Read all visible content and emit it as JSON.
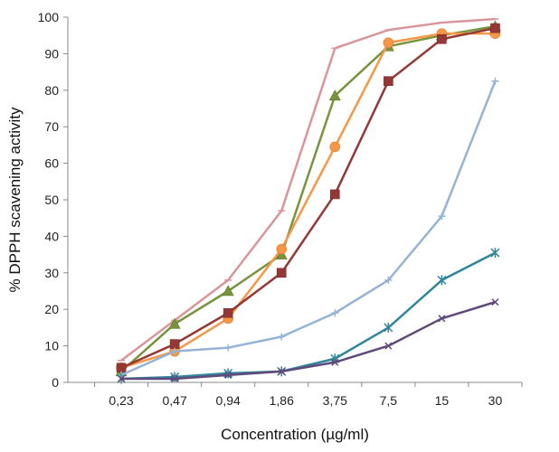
{
  "chart_data": {
    "type": "line",
    "title": "",
    "xlabel": "Concentration (µg/ml)",
    "ylabel": "% DPPH scavening activity",
    "ylim": [
      0,
      100
    ],
    "yticks": [
      0,
      10,
      20,
      30,
      40,
      50,
      60,
      70,
      80,
      90,
      100
    ],
    "categories": [
      "0,23",
      "0,47",
      "0,94",
      "1,86",
      "3,75",
      "7,5",
      "15",
      "30"
    ],
    "grid": false,
    "legend": "none",
    "series": [
      {
        "name": "pink",
        "color": "#D9959A",
        "marker": "dash",
        "values": [
          6,
          17,
          28,
          47,
          91.5,
          96.5,
          98.5,
          99.5
        ]
      },
      {
        "name": "green",
        "color": "#77933C",
        "marker": "triangle",
        "values": [
          3,
          16,
          25,
          35,
          78.5,
          92,
          95,
          97.5
        ]
      },
      {
        "name": "orange",
        "color": "#F79646",
        "marker": "circle",
        "values": [
          4,
          8.5,
          17.5,
          36.5,
          64.5,
          93,
          95.5,
          95.5
        ]
      },
      {
        "name": "red",
        "color": "#953735",
        "marker": "square",
        "values": [
          4,
          10.5,
          19,
          30,
          51.5,
          82.5,
          94,
          97
        ]
      },
      {
        "name": "light-blue",
        "color": "#95B3D7",
        "marker": "plus",
        "values": [
          2,
          8.5,
          9.5,
          12.5,
          19,
          28,
          45.5,
          82.5
        ]
      },
      {
        "name": "teal",
        "color": "#31859C",
        "marker": "star",
        "values": [
          1,
          1.5,
          2.5,
          3,
          6.5,
          15,
          28,
          35.5
        ]
      },
      {
        "name": "purple",
        "color": "#604A7B",
        "marker": "x",
        "values": [
          1,
          1,
          2,
          3,
          5.5,
          10,
          17.5,
          22
        ]
      }
    ]
  }
}
